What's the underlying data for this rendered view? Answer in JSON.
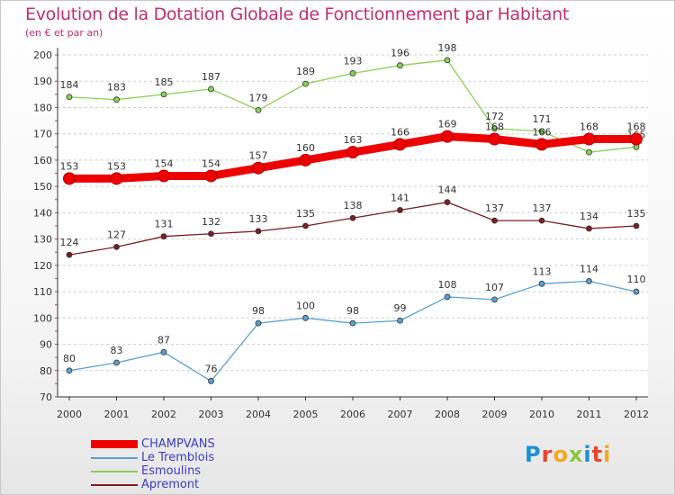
{
  "header": {
    "title": "Evolution de la Dotation Globale de Fonctionnement par Habitant",
    "subtitle": "(en € et par an)"
  },
  "logo": {
    "letters": [
      "P",
      "r",
      "o",
      "x",
      "i",
      "t",
      "i"
    ],
    "colors": [
      "#1e8fd6",
      "#e8452c",
      "#f2a81e",
      "#8cc63f",
      "#1e8fd6",
      "#e8452c",
      "#f2a81e"
    ]
  },
  "chart_data": {
    "type": "line",
    "title": "Evolution de la Dotation Globale de Fonctionnement par Habitant",
    "subtitle": "(en € et par an)",
    "xlabel": "",
    "ylabel": "",
    "x": [
      "2000",
      "2001",
      "2002",
      "2003",
      "2004",
      "2005",
      "2006",
      "2007",
      "2008",
      "2009",
      "2010",
      "2011",
      "2012"
    ],
    "ylim": [
      70,
      200
    ],
    "yticks": [
      70,
      80,
      90,
      100,
      110,
      120,
      130,
      140,
      150,
      160,
      170,
      180,
      190,
      200
    ],
    "grid": "horizontal dashed",
    "legend_position": "bottom-left",
    "series": [
      {
        "name": "CHAMPVANS",
        "color": "#ee0000",
        "emphasis": true,
        "values": [
          153,
          153,
          154,
          154,
          157,
          160,
          163,
          166,
          169,
          168,
          166,
          168,
          168
        ]
      },
      {
        "name": "Le Tremblois",
        "color": "#5ba0d0",
        "emphasis": false,
        "values": [
          80,
          83,
          87,
          76,
          98,
          100,
          98,
          99,
          108,
          107,
          113,
          114,
          110
        ]
      },
      {
        "name": "Esmoulins",
        "color": "#88d055",
        "emphasis": false,
        "values": [
          184,
          183,
          185,
          187,
          179,
          189,
          193,
          196,
          198,
          172,
          171,
          163,
          165
        ]
      },
      {
        "name": "Apremont",
        "color": "#7a1f24",
        "emphasis": false,
        "values": [
          124,
          127,
          131,
          132,
          133,
          135,
          138,
          141,
          144,
          137,
          137,
          134,
          135
        ]
      }
    ]
  }
}
